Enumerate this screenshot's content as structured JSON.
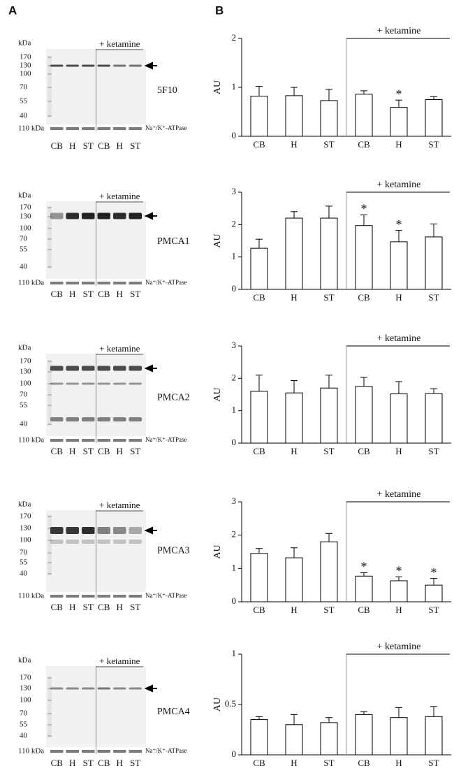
{
  "panels": {
    "a": "A",
    "b": "B"
  },
  "blots": [
    {
      "kda_header": "kDa",
      "markers": [
        "170",
        "130",
        "100",
        "70",
        "55",
        "40"
      ],
      "antibody": "5F10",
      "treatment": "+ ketamine",
      "loading_size": "110 kDa",
      "loading_control": "Na⁺/K⁺-ATPase",
      "lanes": [
        "CB",
        "H",
        "ST",
        "CB",
        "H",
        "ST"
      ]
    },
    {
      "kda_header": "kDa",
      "markers": [
        "170",
        "130",
        "100",
        "70",
        "55",
        "40"
      ],
      "antibody": "PMCA1",
      "treatment": "+ ketamine",
      "loading_size": "110 kDa",
      "loading_control": "Na⁺/K⁺-ATPase",
      "lanes": [
        "CB",
        "H",
        "ST",
        "CB",
        "H",
        "ST"
      ]
    },
    {
      "kda_header": "kDa",
      "markers": [
        "170",
        "130",
        "100",
        "70",
        "55",
        "40"
      ],
      "antibody": "PMCA2",
      "treatment": "+ ketamine",
      "loading_size": "110 kDa",
      "loading_control": "Na⁺/K⁺-ATPase",
      "lanes": [
        "CB",
        "H",
        "ST",
        "CB",
        "H",
        "ST"
      ]
    },
    {
      "kda_header": "kDa",
      "markers": [
        "170",
        "130",
        "100",
        "70",
        "55",
        "40"
      ],
      "antibody": "PMCA3",
      "treatment": "+ ketamine",
      "loading_size": "110 kDa",
      "loading_control": "Na⁺/K⁺-ATPase",
      "lanes": [
        "CB",
        "H",
        "ST",
        "CB",
        "H",
        "ST"
      ]
    },
    {
      "kda_header": "kDa",
      "markers": [
        "170",
        "130",
        "100",
        "70",
        "55",
        "40"
      ],
      "antibody": "PMCA4",
      "treatment": "+ ketamine",
      "loading_size": "110 kDa",
      "loading_control": "Na⁺/K⁺-ATPase",
      "lanes": [
        "CB",
        "H",
        "ST",
        "CB",
        "H",
        "ST"
      ]
    }
  ],
  "chart_data": [
    {
      "type": "bar",
      "ylabel": "AU",
      "group_label": "+ ketamine",
      "categories": [
        "CB",
        "H",
        "ST",
        "CB",
        "H",
        "ST"
      ],
      "values": [
        0.82,
        0.83,
        0.73,
        0.86,
        0.59,
        0.75
      ],
      "errors": [
        0.2,
        0.17,
        0.23,
        0.07,
        0.15,
        0.06
      ],
      "significance": [
        null,
        null,
        null,
        null,
        "*",
        null
      ],
      "color": "#ffffff",
      "ylim": [
        0,
        2
      ],
      "yticks": [
        0,
        1,
        2
      ]
    },
    {
      "type": "bar",
      "ylabel": "AU",
      "group_label": "+ ketamine",
      "categories": [
        "CB",
        "H",
        "ST",
        "CB",
        "H",
        "ST"
      ],
      "values": [
        1.27,
        2.2,
        2.2,
        1.97,
        1.47,
        1.62
      ],
      "errors": [
        0.28,
        0.2,
        0.37,
        0.33,
        0.35,
        0.4
      ],
      "significance": [
        null,
        null,
        null,
        "*",
        "*",
        null
      ],
      "color": "#ffffff",
      "ylim": [
        0,
        3
      ],
      "yticks": [
        0,
        1,
        2,
        3
      ]
    },
    {
      "type": "bar",
      "ylabel": "AU",
      "group_label": "+ ketamine",
      "categories": [
        "CB",
        "H",
        "ST",
        "CB",
        "H",
        "ST"
      ],
      "values": [
        1.6,
        1.55,
        1.7,
        1.75,
        1.52,
        1.53
      ],
      "errors": [
        0.5,
        0.38,
        0.4,
        0.28,
        0.38,
        0.15
      ],
      "significance": [
        null,
        null,
        null,
        null,
        null,
        null
      ],
      "color": "#ffffff",
      "ylim": [
        0,
        3
      ],
      "yticks": [
        0,
        1,
        2,
        3
      ]
    },
    {
      "type": "bar",
      "ylabel": "AU",
      "group_label": "+ ketamine",
      "categories": [
        "CB",
        "H",
        "ST",
        "CB",
        "H",
        "ST"
      ],
      "values": [
        1.45,
        1.32,
        1.8,
        0.77,
        0.63,
        0.5
      ],
      "errors": [
        0.15,
        0.3,
        0.25,
        0.1,
        0.12,
        0.2
      ],
      "significance": [
        null,
        null,
        null,
        "*",
        "*",
        "*"
      ],
      "color": "#ffffff",
      "ylim": [
        0,
        3
      ],
      "yticks": [
        0,
        1,
        2,
        3
      ]
    },
    {
      "type": "bar",
      "ylabel": "AU",
      "group_label": "+ ketamine",
      "categories": [
        "CB",
        "H",
        "ST",
        "CB",
        "H",
        "ST"
      ],
      "values": [
        0.35,
        0.3,
        0.32,
        0.4,
        0.37,
        0.38
      ],
      "errors": [
        0.03,
        0.1,
        0.05,
        0.03,
        0.1,
        0.1
      ],
      "significance": [
        null,
        null,
        null,
        null,
        null,
        null
      ],
      "color": "#ffffff",
      "ylim": [
        0,
        1
      ],
      "yticks": [
        0,
        0.5,
        1
      ]
    }
  ]
}
